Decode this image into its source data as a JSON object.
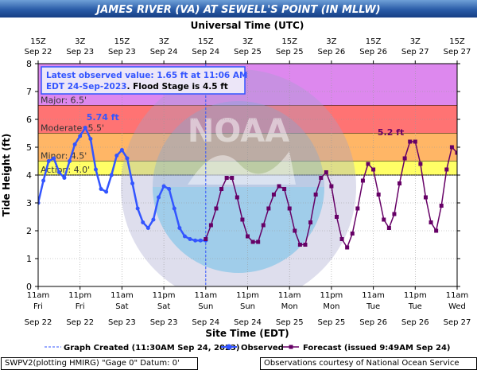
{
  "chart_data": {
    "type": "line",
    "title": "JAMES RIVER (VA) AT SEWELL'S POINT (IN MLLW)",
    "top_axis_label": "Universal Time (UTC)",
    "xlabel": "Site Time (EDT)",
    "ylabel": "Tide Height (ft)",
    "ylim": [
      0,
      8
    ],
    "yticks": [
      "0",
      "1",
      "2",
      "3",
      "4",
      "5",
      "6",
      "7",
      "8"
    ],
    "grid": true,
    "top_ticks": [
      {
        "l1": "15Z",
        "l2": "Sep 22"
      },
      {
        "l1": "3Z",
        "l2": "Sep 23"
      },
      {
        "l1": "15Z",
        "l2": "Sep 23"
      },
      {
        "l1": "3Z",
        "l2": "Sep 24"
      },
      {
        "l1": "15Z",
        "l2": "Sep 24"
      },
      {
        "l1": "3Z",
        "l2": "Sep 25"
      },
      {
        "l1": "15Z",
        "l2": "Sep 25"
      },
      {
        "l1": "3Z",
        "l2": "Sep 26"
      },
      {
        "l1": "15Z",
        "l2": "Sep 26"
      },
      {
        "l1": "3Z",
        "l2": "Sep 27"
      },
      {
        "l1": "15Z",
        "l2": "Sep 27"
      }
    ],
    "bottom_ticks": [
      {
        "l1": "11am",
        "l2": "Fri",
        "l3": "Sep 22"
      },
      {
        "l1": "11pm",
        "l2": "Fri",
        "l3": "Sep 22"
      },
      {
        "l1": "11am",
        "l2": "Sat",
        "l3": "Sep 23"
      },
      {
        "l1": "11pm",
        "l2": "Sat",
        "l3": "Sep 23"
      },
      {
        "l1": "11am",
        "l2": "Sun",
        "l3": "Sep 24"
      },
      {
        "l1": "11pm",
        "l2": "Sun",
        "l3": "Sep 24"
      },
      {
        "l1": "11am",
        "l2": "Mon",
        "l3": "Sep 25"
      },
      {
        "l1": "11pm",
        "l2": "Mon",
        "l3": "Sep 25"
      },
      {
        "l1": "11am",
        "l2": "Tue",
        "l3": "Sep 26"
      },
      {
        "l1": "11pm",
        "l2": "Tue",
        "l3": "Sep 26"
      },
      {
        "l1": "11am",
        "l2": "Wed",
        "l3": "Sep 27"
      }
    ],
    "flood_categories": [
      {
        "name": "Major",
        "label": "Major: 6.5'",
        "from": 6.5,
        "to": 8,
        "color": "#dd88ee"
      },
      {
        "name": "Moderate",
        "label": "Moderate: 5.5'",
        "from": 5.5,
        "to": 6.5,
        "color": "#ff7373"
      },
      {
        "name": "Minor",
        "label": "Minor: 4.5'",
        "from": 4.5,
        "to": 5.5,
        "color": "#ffb666"
      },
      {
        "name": "Action",
        "label": "Action: 4.0'",
        "from": 4.0,
        "to": 4.5,
        "color": "#ffff66"
      }
    ],
    "annotation": {
      "line1": "Latest observed value: 1.65 ft at 11:06 AM",
      "line2": "EDT 24-Sep-2023",
      "line3": ". Flood Stage is 4.5 ft"
    },
    "peak_labels": [
      {
        "text": "5.74 ft",
        "x": 18.5,
        "y": 5.74,
        "color": "#3355ff"
      },
      {
        "text": "5.2 ft",
        "x": 101,
        "y": 5.2,
        "color": "#660066"
      }
    ],
    "watermark": "NOAA",
    "graph_created_x": 48,
    "observed": {
      "name": "Observed",
      "color": "#3355ff",
      "x": [
        0,
        1.5,
        3,
        4.5,
        6,
        7.5,
        9,
        10.5,
        12,
        13.5,
        15,
        16.5,
        18,
        19.5,
        21,
        22.5,
        24,
        25.5,
        27,
        28.5,
        30,
        31.5,
        33,
        34.5,
        36,
        37.5,
        39,
        40.5,
        42,
        43.5,
        45,
        46.5,
        48
      ],
      "y": [
        3.0,
        3.8,
        4.5,
        4.6,
        4.1,
        3.9,
        4.5,
        5.1,
        5.4,
        5.7,
        5.3,
        4.2,
        3.5,
        3.4,
        4.0,
        4.7,
        4.9,
        4.6,
        3.7,
        2.8,
        2.3,
        2.1,
        2.4,
        3.2,
        3.6,
        3.5,
        2.8,
        2.1,
        1.8,
        1.7,
        1.65,
        1.65,
        1.65
      ]
    },
    "forecast": {
      "name": "Forecast (issued 9:49AM Sep 24)",
      "color": "#660066",
      "x": [
        48,
        49.5,
        51,
        52.5,
        54,
        55.5,
        57,
        58.5,
        60,
        61.5,
        63,
        64.5,
        66,
        67.5,
        69,
        70.5,
        72,
        73.5,
        75,
        76.5,
        78,
        79.5,
        81,
        82.5,
        84,
        85.5,
        87,
        88.5,
        90,
        91.5,
        93,
        94.5,
        96,
        97.5,
        99,
        100.5,
        102,
        103.5,
        105,
        106.5,
        108,
        109.5,
        111,
        112.5,
        114,
        115.5,
        117,
        118.5,
        120
      ],
      "y": [
        1.7,
        2.2,
        2.8,
        3.5,
        3.9,
        3.9,
        3.2,
        2.4,
        1.8,
        1.6,
        1.6,
        2.2,
        2.8,
        3.3,
        3.6,
        3.5,
        2.8,
        2.0,
        1.5,
        1.5,
        2.3,
        3.3,
        3.9,
        4.1,
        3.6,
        2.5,
        1.7,
        1.4,
        1.9,
        2.8,
        3.8,
        4.4,
        4.2,
        3.3,
        2.4,
        2.1,
        2.6,
        3.7,
        4.6,
        5.2,
        5.2,
        4.4,
        3.2,
        2.3,
        2.0,
        2.9,
        4.2,
        5.0,
        4.8
      ]
    }
  },
  "legend": {
    "graph_created": "Graph Created (11:30AM Sep 24, 2023)",
    "observed": "Observed",
    "forecast": "Forecast (issued 9:49AM Sep 24)"
  },
  "footer": {
    "left": "SWPV2(plotting HMIRG) \"Gage 0\" Datum:  0'",
    "right": "Observations courtesy of National Ocean Service"
  }
}
